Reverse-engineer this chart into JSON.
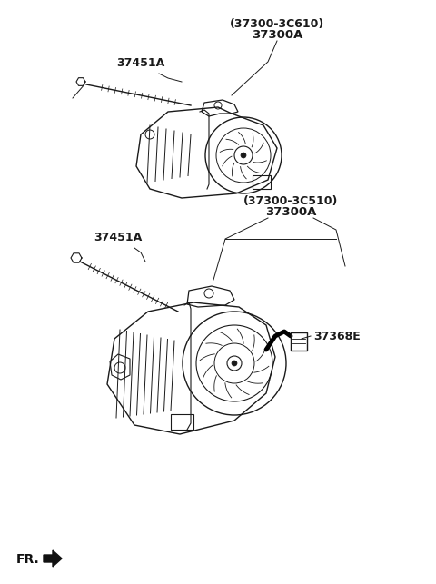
{
  "bg_color": "#ffffff",
  "diagram_labels": {
    "top_part1": "(37300-3C610)",
    "top_part1b": "37300A",
    "top_part2": "37451A",
    "bottom_part1": "(37300-3C510)",
    "bottom_part1b": "37300A",
    "bottom_part2": "37451A",
    "bottom_part3": "37368E"
  },
  "fr_label": "FR.",
  "label_color": "#1a1a1a",
  "line_color": "#1a1a1a",
  "line_width": 1.0
}
